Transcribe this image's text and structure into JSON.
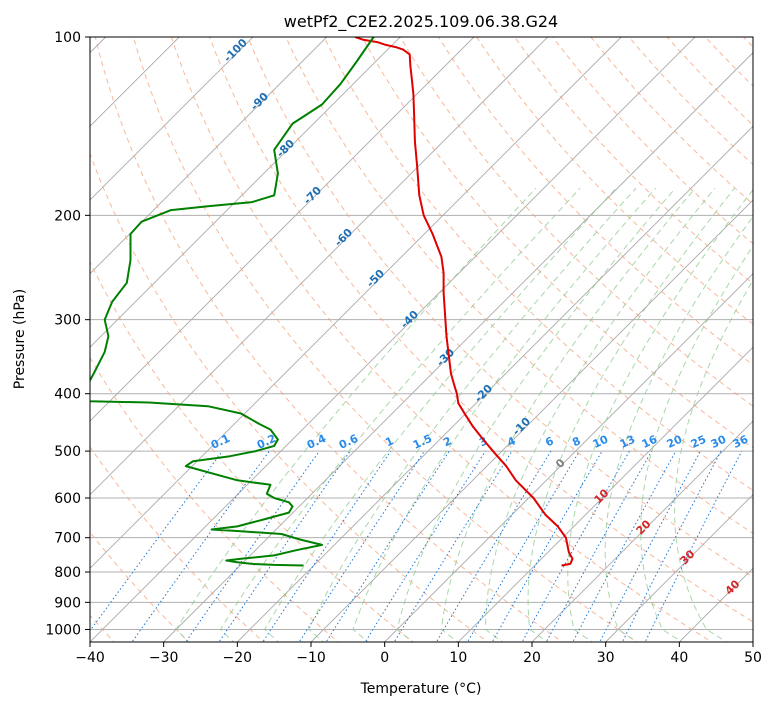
{
  "chart_data": {
    "type": "line",
    "title": "wetPf2_C2E2.2025.109.06.38.G24",
    "xlabel": "Temperature (°C)",
    "ylabel": "Pressure (hPa)",
    "xlim": [
      -40,
      50
    ],
    "ylim": [
      1050,
      100
    ],
    "y_scale": "log",
    "x_ticks": [
      -40,
      -30,
      -20,
      -10,
      0,
      10,
      20,
      30,
      40,
      50
    ],
    "y_ticks": [
      100,
      200,
      300,
      400,
      500,
      600,
      700,
      800,
      900,
      1000
    ],
    "grid": true,
    "colors": {
      "temperature": "#e00000",
      "dewpoint": "#008000",
      "isotherm": "#a9a9a9",
      "dry_adiabat": "#f4a07a",
      "moist_adiabat": "#8cc98c",
      "mixing_ratio": "#1f77d4",
      "isotherm_label": "#1f6fb4",
      "dry_adiabat_label": "#d62728"
    },
    "series": [
      {
        "key": "temperature",
        "x": [
          24.0,
          25.2,
          25.5,
          25.0,
          24.6,
          23.5,
          21.8,
          20.2,
          17.8,
          16.5,
          15.0,
          13.5,
          12.0,
          11.0,
          10.0,
          9.8,
          9.4,
          9.0,
          8.7,
          8.4,
          8.2,
          8.0,
          8.0,
          7.7,
          6.5,
          5.3,
          4.7,
          4.4,
          4.1,
          4.0,
          3.9,
          3.7,
          3.5,
          3.4,
          2.5,
          1.5,
          0.0,
          -1.0,
          -3.0,
          -4.0
        ],
        "y": [
          780,
          775,
          760,
          740,
          700,
          670,
          640,
          600,
          560,
          530,
          505,
          480,
          455,
          435,
          415,
          400,
          385,
          370,
          345,
          320,
          295,
          270,
          250,
          235,
          215,
          200,
          185,
          165,
          150,
          135,
          125,
          118,
          112,
          107,
          105,
          104,
          103,
          102,
          101,
          100
        ]
      },
      {
        "key": "dewpoint",
        "x": [
          -11.0,
          -15.0,
          -18.0,
          -20.0,
          -21.5,
          -19.5,
          -15.0,
          -12.0,
          -8.5,
          -11.5,
          -14.0,
          -20.0,
          -23.5,
          -20.0,
          -16.0,
          -13.0,
          -12.5,
          -13.0,
          -15.0,
          -16.0,
          -15.5,
          -20.0,
          -27.0,
          -26.0,
          -21.0,
          -17.5,
          -15.0,
          -14.5,
          -15.5,
          -17.0,
          -19.5,
          -24.0,
          -32.0,
          -40.0,
          -41.0,
          -39.5,
          -38.0,
          -37.5,
          -38.0,
          -37.0,
          -35.0,
          -34.5,
          -34.5,
          -33.0,
          -29.0,
          -24.0,
          -18.0,
          -15.0,
          -14.5,
          -15.0,
          -12.5,
          -8.5,
          -6.0,
          -3.8,
          -1.5
        ],
        "y": [
          780,
          778,
          775,
          770,
          765,
          760,
          750,
          735,
          720,
          705,
          690,
          682,
          678,
          670,
          650,
          635,
          620,
          610,
          600,
          590,
          570,
          560,
          530,
          520,
          510,
          500,
          490,
          478,
          460,
          450,
          432,
          420,
          414,
          412,
          400,
          370,
          340,
          320,
          300,
          280,
          260,
          238,
          215,
          205,
          196,
          193,
          190,
          185,
          170,
          155,
          140,
          130,
          120,
          110,
          100
        ]
      }
    ],
    "isotherm_labels": [
      "-100",
      "-90",
      "-80",
      "-70",
      "-60",
      "-50",
      "-40",
      "-30",
      "-20",
      "-10",
      "0"
    ],
    "dry_adiabat_labels": [
      "10",
      "20",
      "30",
      "40"
    ],
    "mixing_ratio_labels": [
      "0.1",
      "0.2",
      "0.4",
      "0.6",
      "1",
      "1.5",
      "2",
      "3",
      "4",
      "6",
      "8",
      "10",
      "13",
      "16",
      "20",
      "25",
      "30",
      "36"
    ]
  }
}
